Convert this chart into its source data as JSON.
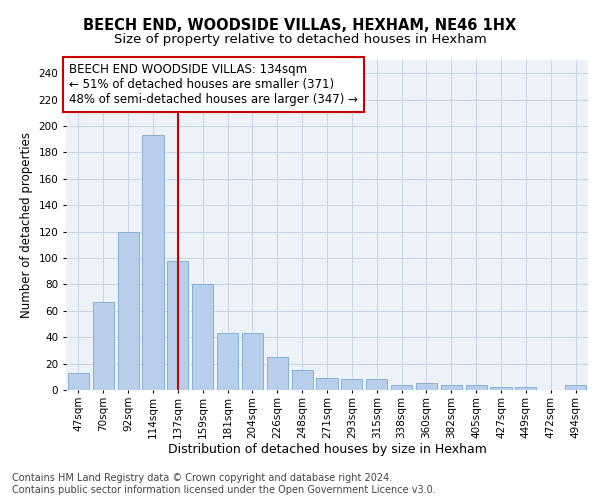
{
  "title": "BEECH END, WOODSIDE VILLAS, HEXHAM, NE46 1HX",
  "subtitle": "Size of property relative to detached houses in Hexham",
  "xlabel": "Distribution of detached houses by size in Hexham",
  "ylabel": "Number of detached properties",
  "categories": [
    "47sqm",
    "70sqm",
    "92sqm",
    "114sqm",
    "137sqm",
    "159sqm",
    "181sqm",
    "204sqm",
    "226sqm",
    "248sqm",
    "271sqm",
    "293sqm",
    "315sqm",
    "338sqm",
    "360sqm",
    "382sqm",
    "405sqm",
    "427sqm",
    "449sqm",
    "472sqm",
    "494sqm"
  ],
  "values": [
    13,
    67,
    120,
    193,
    98,
    80,
    43,
    43,
    25,
    15,
    9,
    8,
    8,
    4,
    5,
    4,
    4,
    2,
    2,
    0,
    4
  ],
  "bar_color": "#b8ceeb",
  "bar_edgecolor": "#7aaad4",
  "bar_linewidth": 0.6,
  "grid_color": "#c8d4e8",
  "background_color": "#edf1f8",
  "vline_x": 4.0,
  "vline_color": "#cc0000",
  "annotation_box_text": "BEECH END WOODSIDE VILLAS: 134sqm\n← 51% of detached houses are smaller (371)\n48% of semi-detached houses are larger (347) →",
  "annotation_fontsize": 8.5,
  "title_fontsize": 10.5,
  "subtitle_fontsize": 9.5,
  "xlabel_fontsize": 9,
  "ylabel_fontsize": 8.5,
  "tick_fontsize": 7.5,
  "footer_text": "Contains HM Land Registry data © Crown copyright and database right 2024.\nContains public sector information licensed under the Open Government Licence v3.0.",
  "footer_fontsize": 7,
  "ylim": [
    0,
    250
  ],
  "yticks": [
    0,
    20,
    40,
    60,
    80,
    100,
    120,
    140,
    160,
    180,
    200,
    220,
    240
  ]
}
